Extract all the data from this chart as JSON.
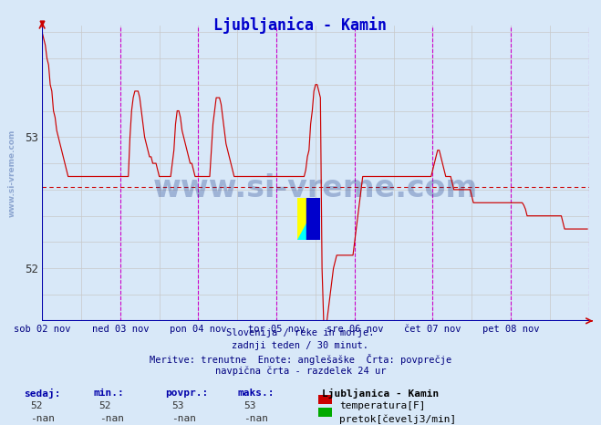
{
  "title": "Ljubljanica - Kamin",
  "title_color": "#0000cc",
  "bg_color": "#d8e8f8",
  "line_color": "#cc0000",
  "grid_color": "#c8c8c8",
  "vline_color": "#cc00cc",
  "avg_line_color": "#cc0000",
  "avg_value": 52.62,
  "y_min": 51.6,
  "y_max": 53.85,
  "yticks": [
    52.0,
    53.0
  ],
  "n_points": 336,
  "x_tick_labels": [
    "sob 02 nov",
    "ned 03 nov",
    "pon 04 nov",
    "tor 05 nov",
    "sre 06 nov",
    "čet 07 nov",
    "pet 08 nov"
  ],
  "x_tick_positions": [
    0,
    48,
    96,
    144,
    192,
    240,
    288
  ],
  "vline_positions": [
    48,
    96,
    144,
    192,
    240,
    288,
    336
  ],
  "footer_lines": [
    "Slovenija / reke in morje.",
    "zadnji teden / 30 minut.",
    "Meritve: trenutne  Enote: anglešaške  Črta: povprečje",
    "navpična črta - razdelek 24 ur"
  ],
  "footer_color": "#000080",
  "table_headers": [
    "sedaj:",
    "min.:",
    "povpr.:",
    "maks.:"
  ],
  "table_vals_temp": [
    "52",
    "52",
    "53",
    "53"
  ],
  "table_vals_flow": [
    "-nan",
    "-nan",
    "-nan",
    "-nan"
  ],
  "legend_title": "Ljubljanica - Kamin",
  "legend_temp_color": "#cc0000",
  "legend_flow_color": "#00aa00",
  "legend_temp_label": "temperatura[F]",
  "legend_flow_label": "pretok[čevelj3/min]",
  "watermark_text": "www.si-vreme.com",
  "watermark_color": "#1a3a8a",
  "watermark_alpha": 0.3,
  "sidebar_text": "www.si-vreme.com",
  "sidebar_color": "#4466aa",
  "sidebar_alpha": 0.5
}
